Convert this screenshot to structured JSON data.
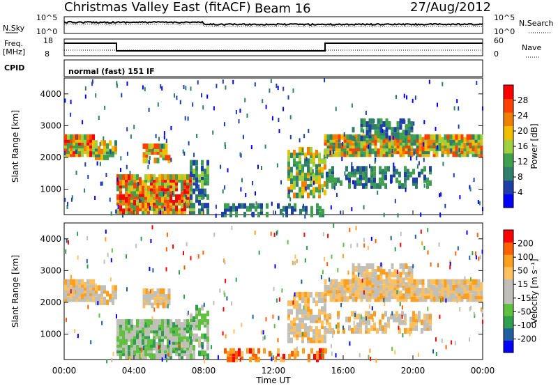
{
  "header": {
    "station": "Christmas Valley East (fitACF)",
    "beam": "Beam 16",
    "date": "27/Aug/2012"
  },
  "meta_panels": {
    "nsky_label": "N.Sky",
    "nsky_tick_top": "10^5",
    "nsky_tick_bottom": "10^0",
    "nsearch_label": "N.Search",
    "nsearch_tick_top": "10^5",
    "nsearch_tick_bottom": "10^0",
    "freq_label_1": "Freq.",
    "freq_label_2": "[MHz]",
    "freq_tick_top": "18",
    "freq_tick_bottom": "8",
    "nave_label": "Nave",
    "nave_tick_top": "60",
    "nave_tick_bottom": "0",
    "cpid_label": "CPID",
    "cpid_text": "normal (fast) 151 IF"
  },
  "colors": {
    "power_scale": [
      "#0000ff",
      "#1f3fa8",
      "#2f7f6a",
      "#3fa050",
      "#9fd040",
      "#f0c000",
      "#f08000",
      "#ff4000",
      "#ff0000"
    ],
    "velocity_scale": [
      "#ff0000",
      "#ff6000",
      "#ff9f20",
      "#ffc060",
      "#c0c0b8",
      "#c0c0b8",
      "#60c040",
      "#2f9f4f",
      "#1f5fa0",
      "#0000ff"
    ]
  },
  "chart_data": [
    {
      "type": "heatmap",
      "name": "power",
      "ylabel": "Slant Range [km]",
      "yticks": [
        "1000",
        "2000",
        "3000",
        "4000"
      ],
      "ylim": [
        200,
        4500
      ],
      "xlim": [
        "00:00",
        "24:00"
      ],
      "colorbar_label": "Power [dB]",
      "colorbar_ticks": [
        "4",
        "8",
        "12",
        "16",
        "20",
        "24",
        "28"
      ],
      "colorbar_range": [
        0,
        32
      ]
    },
    {
      "type": "heatmap",
      "name": "velocity",
      "ylabel": "Slant Range [km]",
      "yticks": [
        "1000",
        "2000",
        "3000",
        "4000"
      ],
      "ylim": [
        200,
        4500
      ],
      "xlabel": "Time UT",
      "xticks": [
        "00:00",
        "04:00",
        "08:00",
        "12:00",
        "16:00",
        "20:00",
        "00:00"
      ],
      "colorbar_label": "Velocity [m s⁻¹]",
      "colorbar_ticks": [
        "200",
        "100",
        "50",
        "15",
        "-15",
        "-50",
        "-100",
        "-200"
      ],
      "colorbar_range": [
        -250,
        250
      ]
    }
  ]
}
